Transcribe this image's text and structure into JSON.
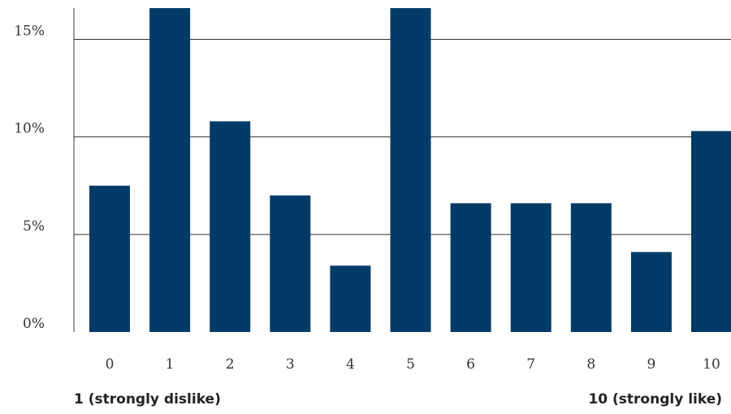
{
  "colors": {
    "bar": "#003b68",
    "grid": "#333333",
    "axis": "#333333"
  },
  "chart_data": {
    "type": "bar",
    "categories": [
      "0",
      "1",
      "2",
      "3",
      "4",
      "5",
      "6",
      "7",
      "8",
      "9",
      "10"
    ],
    "values": [
      7.5,
      16.6,
      10.8,
      7.0,
      3.4,
      16.6,
      6.6,
      6.6,
      6.6,
      4.1,
      10.3
    ],
    "ylim": [
      0,
      16.6
    ],
    "yticks": [
      0,
      5,
      10,
      15
    ],
    "ytick_labels": [
      "0%",
      "5%",
      "10%",
      "15%"
    ],
    "grid": true,
    "xlabel_left": "1 (strongly dislike)",
    "xlabel_right": "10 (strongly like)"
  }
}
